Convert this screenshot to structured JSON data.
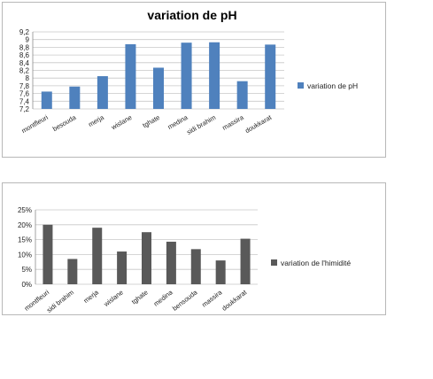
{
  "charts": [
    {
      "type": "bar",
      "title": "variation de pH",
      "categories": [
        "montfleuri",
        "besouda",
        "merja",
        "wislane",
        "tghate",
        "medina",
        "sidi brahim",
        "massira",
        "doukkarat"
      ],
      "series": [
        {
          "name": "variation de pH",
          "values": [
            7.65,
            7.78,
            8.05,
            8.88,
            8.27,
            8.92,
            8.93,
            7.92,
            8.87
          ]
        }
      ],
      "ylim": [
        7.2,
        9.2
      ],
      "ytick_labels": [
        "7,2",
        "7,4",
        "7,6",
        "7,8",
        "8",
        "8,2",
        "8,4",
        "8,6",
        "8,8",
        "9",
        "9,2"
      ],
      "ytick_values": [
        7.2,
        7.4,
        7.6,
        7.8,
        8.0,
        8.2,
        8.4,
        8.6,
        8.8,
        9.0,
        9.2
      ],
      "color": "#4f81bd",
      "legend_position": "right",
      "grid": true
    },
    {
      "type": "bar",
      "title": "",
      "categories": [
        "montfleuri",
        "sidi brahim",
        "merja",
        "wislane",
        "tghate",
        "medina",
        "bensouda",
        "massira",
        "doukkarat"
      ],
      "series": [
        {
          "name": "variation de l'himidité",
          "values": [
            20,
            8.5,
            19,
            11,
            17.5,
            14.3,
            11.8,
            8,
            15.3
          ]
        }
      ],
      "ylim": [
        0,
        25
      ],
      "ytick_labels": [
        "0%",
        "5%",
        "10%",
        "15%",
        "20%",
        "25%"
      ],
      "ytick_values": [
        0,
        5,
        10,
        15,
        20,
        25
      ],
      "color": "#595959",
      "legend_position": "right",
      "grid": true
    }
  ]
}
